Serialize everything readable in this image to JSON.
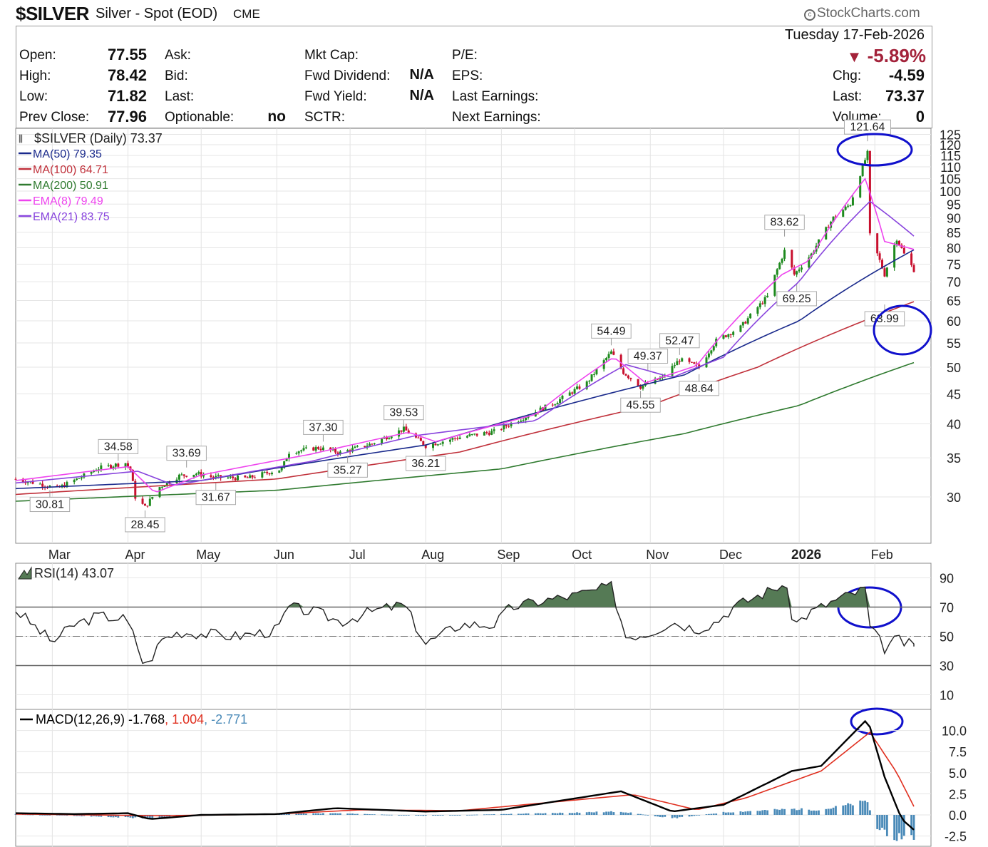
{
  "header": {
    "symbol": "$SILVER",
    "description": "Silver - Spot (EOD)",
    "exchange": "CME",
    "brand": "StockCharts.com",
    "date": "Tuesday  17-Feb-2026",
    "change_pct": "-5.89%"
  },
  "quote": {
    "open_label": "Open:",
    "open": "77.55",
    "high_label": "High:",
    "high": "78.42",
    "low_label": "Low:",
    "low": "71.82",
    "prev_label": "Prev Close:",
    "prev": "77.96",
    "ask_label": "Ask:",
    "bid_label": "Bid:",
    "last_label": "Last:",
    "optionable_label": "Optionable:",
    "optionable": "no",
    "mktcap_label": "Mkt Cap:",
    "fwddiv_label": "Fwd Dividend:",
    "fwddiv": "N/A",
    "fwdyield_label": "Fwd Yield:",
    "fwdyield": "N/A",
    "sctr_label": "SCTR:",
    "pe_label": "P/E:",
    "eps_label": "EPS:",
    "lastearn_label": "Last Earnings:",
    "nextearn_label": "Next Earnings:",
    "chg_label": "Chg:",
    "chg": "-4.59",
    "last2_label": "Last:",
    "last": "73.37",
    "volume_label": "Volume:",
    "volume": "0"
  },
  "colors": {
    "up": "#1e8a1e",
    "down": "#c8102e",
    "ma50": "#1a2a8c",
    "ma100": "#c0303a",
    "ma200": "#2f7a2f",
    "ema8": "#ee44ee",
    "ema21": "#8844dd",
    "rsi_fill": "#557a55",
    "macd_line": "#000000",
    "macd_signal": "#e03020",
    "macd_hist": "#4a8ab8",
    "circle": "#1010cc"
  },
  "chart_data": [
    {
      "type": "line",
      "panel": "price",
      "title": "$SILVER (Daily) 73.37",
      "scale": "log",
      "ylim": [
        25,
        128
      ],
      "yticks": [
        30,
        35,
        40,
        45,
        50,
        55,
        60,
        65,
        70,
        75,
        80,
        85,
        90,
        95,
        100,
        105,
        110,
        115,
        120,
        125
      ],
      "x_labels": [
        "Mar",
        "Apr",
        "May",
        "Jun",
        "Jul",
        "Aug",
        "Sep",
        "Oct",
        "Nov",
        "Dec",
        "2026",
        "Feb"
      ],
      "x_label_dates": [
        "2025-03-01",
        "2025-04-01",
        "2025-05-01",
        "2025-06-01",
        "2025-07-01",
        "2025-08-01",
        "2025-09-01",
        "2025-10-01",
        "2025-11-01",
        "2025-12-01",
        "2026-01-01",
        "2026-02-01"
      ],
      "x_range": [
        "2025-02-14",
        "2026-02-24"
      ],
      "legend": [
        {
          "text": "MA(50) 79.35",
          "color_key": "ma50"
        },
        {
          "text": "MA(100) 64.71",
          "color_key": "ma100"
        },
        {
          "text": "MA(200) 50.91",
          "color_key": "ma200"
        },
        {
          "text": "EMA(8) 79.49",
          "color_key": "ema8"
        },
        {
          "text": "EMA(21) 83.75",
          "color_key": "ema21"
        }
      ],
      "price_close_path": [
        [
          "2025-02-14",
          32.2
        ],
        [
          "2025-02-25",
          31.5
        ],
        [
          "2025-03-03",
          31.0
        ],
        [
          "2025-03-14",
          32.6
        ],
        [
          "2025-03-20",
          33.6
        ],
        [
          "2025-03-31",
          34.3
        ],
        [
          "2025-04-02",
          33.4
        ],
        [
          "2025-04-04",
          30.0
        ],
        [
          "2025-04-08",
          28.8
        ],
        [
          "2025-04-14",
          31.2
        ],
        [
          "2025-04-22",
          32.6
        ],
        [
          "2025-04-29",
          32.9
        ],
        [
          "2025-05-06",
          32.4
        ],
        [
          "2025-05-20",
          32.3
        ],
        [
          "2025-06-03",
          33.5
        ],
        [
          "2025-06-06",
          35.8
        ],
        [
          "2025-06-18",
          36.4
        ],
        [
          "2025-06-27",
          35.7
        ],
        [
          "2025-07-10",
          37.0
        ],
        [
          "2025-07-23",
          39.2
        ],
        [
          "2025-08-01",
          36.7
        ],
        [
          "2025-08-13",
          37.8
        ],
        [
          "2025-08-29",
          38.8
        ],
        [
          "2025-09-10",
          41.0
        ],
        [
          "2025-09-23",
          43.5
        ],
        [
          "2025-10-06",
          47.0
        ],
        [
          "2025-10-16",
          53.0
        ],
        [
          "2025-10-21",
          49.0
        ],
        [
          "2025-10-28",
          46.3
        ],
        [
          "2025-11-06",
          48.0
        ],
        [
          "2025-11-13",
          51.5
        ],
        [
          "2025-11-21",
          50.0
        ],
        [
          "2025-11-28",
          55.5
        ],
        [
          "2025-12-08",
          58.5
        ],
        [
          "2025-12-19",
          66.0
        ],
        [
          "2025-12-26",
          79.0
        ],
        [
          "2025-12-30",
          72.0
        ],
        [
          "2026-01-06",
          78.0
        ],
        [
          "2026-01-15",
          90.0
        ],
        [
          "2026-01-22",
          95.0
        ],
        [
          "2026-01-29",
          116.0
        ],
        [
          "2026-01-30",
          84.0
        ],
        [
          "2026-02-05",
          72.0
        ],
        [
          "2026-02-10",
          83.0
        ],
        [
          "2026-02-13",
          78.0
        ],
        [
          "2026-02-17",
          73.37
        ]
      ],
      "ma50": [
        [
          "2025-02-14",
          31.0
        ],
        [
          "2025-05-01",
          32.0
        ],
        [
          "2025-08-01",
          36.8
        ],
        [
          "2025-10-01",
          43.5
        ],
        [
          "2025-11-15",
          48.5
        ],
        [
          "2026-01-01",
          60.0
        ],
        [
          "2026-02-17",
          79.35
        ]
      ],
      "ma100": [
        [
          "2025-02-14",
          30.3
        ],
        [
          "2025-06-01",
          32.2
        ],
        [
          "2025-08-15",
          35.8
        ],
        [
          "2025-11-01",
          43.0
        ],
        [
          "2025-12-15",
          50.0
        ],
        [
          "2026-02-17",
          64.71
        ]
      ],
      "ma200": [
        [
          "2025-02-14",
          29.5
        ],
        [
          "2025-06-01",
          30.8
        ],
        [
          "2025-09-01",
          33.5
        ],
        [
          "2025-11-15",
          38.5
        ],
        [
          "2026-01-01",
          43.0
        ],
        [
          "2026-02-17",
          50.91
        ]
      ],
      "ema8": [
        [
          "2025-02-14",
          32.0
        ],
        [
          "2025-04-01",
          33.8
        ],
        [
          "2025-04-12",
          30.5
        ],
        [
          "2025-05-01",
          32.7
        ],
        [
          "2025-06-15",
          35.5
        ],
        [
          "2025-07-25",
          38.7
        ],
        [
          "2025-08-05",
          37.3
        ],
        [
          "2025-09-15",
          41.5
        ],
        [
          "2025-10-17",
          52.0
        ],
        [
          "2025-10-30",
          47.0
        ],
        [
          "2025-11-20",
          50.3
        ],
        [
          "2025-12-25",
          72.0
        ],
        [
          "2026-01-05",
          76.0
        ],
        [
          "2026-01-28",
          105.0
        ],
        [
          "2026-02-05",
          82.0
        ],
        [
          "2026-02-17",
          79.49
        ]
      ],
      "ema21": [
        [
          "2025-02-14",
          31.7
        ],
        [
          "2025-04-05",
          33.2
        ],
        [
          "2025-04-20",
          31.4
        ],
        [
          "2025-06-15",
          34.5
        ],
        [
          "2025-07-28",
          38.2
        ],
        [
          "2025-09-15",
          40.5
        ],
        [
          "2025-10-22",
          50.5
        ],
        [
          "2025-11-10",
          48.0
        ],
        [
          "2025-12-01",
          52.0
        ],
        [
          "2026-01-01",
          70.0
        ],
        [
          "2026-01-30",
          96.0
        ],
        [
          "2026-02-17",
          83.75
        ]
      ],
      "annotations": [
        {
          "text": "30.81",
          "date": "2025-02-28",
          "value": 30.81,
          "pos": "below"
        },
        {
          "text": "34.58",
          "date": "2025-03-28",
          "value": 34.58,
          "pos": "above"
        },
        {
          "text": "28.45",
          "date": "2025-04-08",
          "value": 28.45,
          "pos": "below"
        },
        {
          "text": "33.69",
          "date": "2025-04-25",
          "value": 33.69,
          "pos": "above"
        },
        {
          "text": "31.67",
          "date": "2025-05-07",
          "value": 31.67,
          "pos": "below"
        },
        {
          "text": "37.30",
          "date": "2025-06-20",
          "value": 37.3,
          "pos": "above"
        },
        {
          "text": "35.27",
          "date": "2025-06-30",
          "value": 35.27,
          "pos": "below"
        },
        {
          "text": "39.53",
          "date": "2025-07-23",
          "value": 39.53,
          "pos": "above"
        },
        {
          "text": "36.21",
          "date": "2025-08-01",
          "value": 36.21,
          "pos": "below"
        },
        {
          "text": "54.49",
          "date": "2025-10-16",
          "value": 54.49,
          "pos": "above"
        },
        {
          "text": "49.37",
          "date": "2025-10-31",
          "value": 49.37,
          "pos": "above"
        },
        {
          "text": "45.55",
          "date": "2025-10-28",
          "value": 45.55,
          "pos": "below"
        },
        {
          "text": "52.47",
          "date": "2025-11-13",
          "value": 52.47,
          "pos": "above"
        },
        {
          "text": "48.64",
          "date": "2025-11-21",
          "value": 48.64,
          "pos": "below"
        },
        {
          "text": "83.62",
          "date": "2025-12-26",
          "value": 83.62,
          "pos": "above"
        },
        {
          "text": "69.25",
          "date": "2025-12-31",
          "value": 69.25,
          "pos": "below"
        },
        {
          "text": "121.64",
          "date": "2026-01-29",
          "value": 121.64,
          "pos": "above"
        },
        {
          "text": "63.99",
          "date": "2026-02-05",
          "value": 63.99,
          "pos": "below"
        }
      ]
    },
    {
      "type": "line",
      "panel": "rsi",
      "title": "RSI(14) 43.07",
      "ylim": [
        0,
        100
      ],
      "yticks": [
        10,
        30,
        50,
        70,
        90
      ],
      "overbought": 70,
      "oversold": 30,
      "midline": 50,
      "values": [
        [
          "2025-02-14",
          68
        ],
        [
          "2025-02-21",
          58
        ],
        [
          "2025-03-01",
          46
        ],
        [
          "2025-03-10",
          58
        ],
        [
          "2025-03-20",
          64
        ],
        [
          "2025-03-31",
          62
        ],
        [
          "2025-04-04",
          48
        ],
        [
          "2025-04-08",
          28
        ],
        [
          "2025-04-15",
          48
        ],
        [
          "2025-04-22",
          53
        ],
        [
          "2025-05-01",
          52
        ],
        [
          "2025-05-15",
          50
        ],
        [
          "2025-06-01",
          54
        ],
        [
          "2025-06-06",
          70
        ],
        [
          "2025-06-18",
          66
        ],
        [
          "2025-06-27",
          60
        ],
        [
          "2025-07-10",
          67
        ],
        [
          "2025-07-23",
          72
        ],
        [
          "2025-08-01",
          45
        ],
        [
          "2025-08-15",
          58
        ],
        [
          "2025-08-29",
          58
        ],
        [
          "2025-09-05",
          70
        ],
        [
          "2025-09-20",
          75
        ],
        [
          "2025-10-01",
          78
        ],
        [
          "2025-10-16",
          84
        ],
        [
          "2025-10-22",
          50
        ],
        [
          "2025-10-31",
          52
        ],
        [
          "2025-11-10",
          60
        ],
        [
          "2025-11-20",
          55
        ],
        [
          "2025-11-28",
          60
        ],
        [
          "2025-12-05",
          70
        ],
        [
          "2025-12-26",
          86
        ],
        [
          "2025-12-30",
          58
        ],
        [
          "2026-01-05",
          66
        ],
        [
          "2026-01-15",
          74
        ],
        [
          "2026-01-29",
          83
        ],
        [
          "2026-01-30",
          56
        ],
        [
          "2026-02-05",
          42
        ],
        [
          "2026-02-10",
          48
        ],
        [
          "2026-02-17",
          43.07
        ]
      ]
    },
    {
      "type": "line",
      "panel": "macd",
      "title": "MACD(12,26,9) -1.768, 1.004, -2.771",
      "legend": [
        {
          "text": "MACD(12,26,9) -1.768",
          "color_key": "macd_line"
        },
        {
          "text": "1.004",
          "color_key": "macd_signal"
        },
        {
          "text": "-2.771",
          "color_key": "macd_hist"
        }
      ],
      "ylim": [
        -3.8,
        12.5
      ],
      "yticks": [
        -2.5,
        0.0,
        2.5,
        5.0,
        7.5,
        10.0
      ],
      "macd": [
        [
          "2025-02-14",
          0.2
        ],
        [
          "2025-03-10",
          0.1
        ],
        [
          "2025-04-01",
          0.2
        ],
        [
          "2025-04-10",
          -0.5
        ],
        [
          "2025-05-01",
          0.0
        ],
        [
          "2025-06-01",
          0.1
        ],
        [
          "2025-06-25",
          0.8
        ],
        [
          "2025-08-01",
          0.4
        ],
        [
          "2025-09-01",
          0.6
        ],
        [
          "2025-10-20",
          2.8
        ],
        [
          "2025-11-10",
          0.4
        ],
        [
          "2025-12-01",
          1.2
        ],
        [
          "2025-12-29",
          5.2
        ],
        [
          "2026-01-10",
          5.8
        ],
        [
          "2026-01-29",
          11.4
        ],
        [
          "2026-02-05",
          4.5
        ],
        [
          "2026-02-12",
          -0.5
        ],
        [
          "2026-02-17",
          -1.768
        ]
      ],
      "signal": [
        [
          "2025-02-14",
          0.1
        ],
        [
          "2025-04-15",
          -0.1
        ],
        [
          "2025-06-01",
          0.1
        ],
        [
          "2025-07-05",
          0.6
        ],
        [
          "2025-08-15",
          0.5
        ],
        [
          "2025-10-25",
          2.4
        ],
        [
          "2025-11-20",
          0.6
        ],
        [
          "2025-12-10",
          2.0
        ],
        [
          "2026-01-10",
          5.2
        ],
        [
          "2026-01-30",
          9.8
        ],
        [
          "2026-02-10",
          5.0
        ],
        [
          "2026-02-17",
          1.004
        ]
      ],
      "histogram": [
        [
          "2025-02-14",
          0.1
        ],
        [
          "2025-04-10",
          -0.4
        ],
        [
          "2025-05-01",
          0.05
        ],
        [
          "2025-06-25",
          0.2
        ],
        [
          "2025-08-01",
          -0.1
        ],
        [
          "2025-10-20",
          0.4
        ],
        [
          "2025-11-10",
          -0.4
        ],
        [
          "2025-12-01",
          0.3
        ],
        [
          "2025-12-29",
          0.7
        ],
        [
          "2026-01-10",
          0.6
        ],
        [
          "2026-01-29",
          1.6
        ],
        [
          "2026-02-01",
          -1.5
        ],
        [
          "2026-02-10",
          -2.6
        ],
        [
          "2026-02-17",
          -2.771
        ]
      ]
    }
  ]
}
